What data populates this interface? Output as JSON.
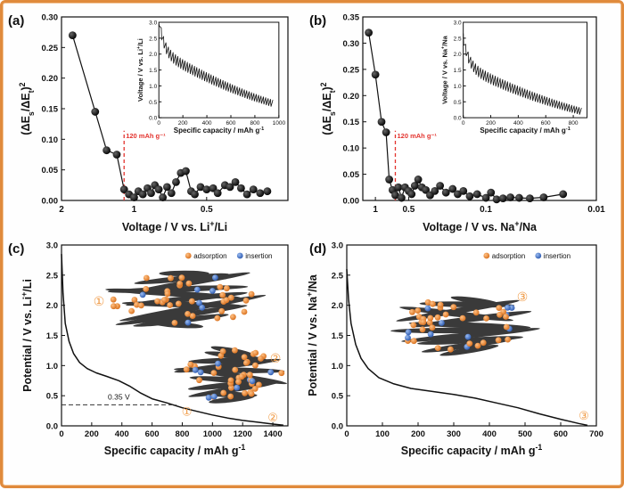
{
  "panel_labels": [
    "(a)",
    "(b)",
    "(c)",
    "(d)"
  ],
  "colors": {
    "frame": "#e08a3c",
    "adsorption": "#e8852e",
    "insertion": "#3b6fc6",
    "sheet": "#3a3a3a",
    "annotation_red": "#e3342f",
    "circled": "#f09a45"
  },
  "chart_data": [
    {
      "id": "a",
      "type": "scatter",
      "ylabel": "(ΔE_s/ΔE_t)^2",
      "xlabel": "Voltage / V vs. Li+/Li",
      "x_scale": "log-reversed",
      "xlim": [
        2,
        0.23
      ],
      "ylim": [
        0,
        0.3
      ],
      "xticks": [
        "2",
        "1",
        "0.5"
      ],
      "yticks": [
        "0.00",
        "0.05",
        "0.10",
        "0.15",
        "0.20",
        "0.25",
        "0.30"
      ],
      "x": [
        1.8,
        1.45,
        1.3,
        1.18,
        1.1,
        1.05,
        1.0,
        0.96,
        0.92,
        0.88,
        0.85,
        0.82,
        0.79,
        0.76,
        0.73,
        0.7,
        0.67,
        0.64,
        0.61,
        0.58,
        0.56,
        0.53,
        0.5,
        0.47,
        0.45,
        0.42,
        0.4,
        0.38,
        0.36,
        0.34,
        0.32,
        0.3,
        0.28
      ],
      "y": [
        0.27,
        0.145,
        0.082,
        0.075,
        0.018,
        0.01,
        0.005,
        0.015,
        0.01,
        0.02,
        0.012,
        0.025,
        0.018,
        0.005,
        0.022,
        0.012,
        0.03,
        0.045,
        0.048,
        0.015,
        0.01,
        0.022,
        0.018,
        0.02,
        0.012,
        0.025,
        0.022,
        0.03,
        0.02,
        0.01,
        0.018,
        0.012,
        0.015
      ],
      "annotation": "120 mAh g⁻¹",
      "annotation_x": 1.1,
      "inset": {
        "type": "line",
        "xlabel": "Specific capacity / mAh g⁻¹",
        "ylabel": "Voltage / V vs. Li+/Li",
        "xlim": [
          0,
          1000
        ],
        "ylim": [
          0,
          3
        ],
        "xticks": [
          "0",
          "200",
          "400",
          "600",
          "800",
          "1000"
        ],
        "yticks": [
          "0.0",
          "0.5",
          "1.0",
          "1.5",
          "2.0",
          "2.5",
          "3.0"
        ],
        "start_voltage": 2.9,
        "end_capacity": 950,
        "end_voltage": 0.35
      }
    },
    {
      "id": "b",
      "type": "scatter",
      "ylabel": "(ΔE_s/ΔE_t)^2",
      "xlabel": "Voltage / V vs. Na+/Na",
      "x_scale": "log-reversed",
      "xlim": [
        1.3,
        0.01
      ],
      "ylim": [
        0,
        0.35
      ],
      "xticks": [
        "1",
        "0.5",
        "0.1",
        "0.01"
      ],
      "yticks": [
        "0.00",
        "0.05",
        "0.10",
        "0.15",
        "0.20",
        "0.25",
        "0.30",
        "0.35"
      ],
      "x": [
        1.15,
        1.0,
        0.88,
        0.8,
        0.75,
        0.7,
        0.66,
        0.62,
        0.58,
        0.54,
        0.5,
        0.47,
        0.44,
        0.41,
        0.38,
        0.35,
        0.32,
        0.29,
        0.26,
        0.23,
        0.2,
        0.18,
        0.16,
        0.14,
        0.12,
        0.1,
        0.09,
        0.08,
        0.07,
        0.06,
        0.05,
        0.04,
        0.03,
        0.02
      ],
      "y": [
        0.32,
        0.24,
        0.15,
        0.13,
        0.04,
        0.02,
        0.01,
        0.025,
        0.005,
        0.025,
        0.018,
        0.012,
        0.028,
        0.04,
        0.025,
        0.02,
        0.01,
        0.018,
        0.028,
        0.015,
        0.022,
        0.012,
        0.018,
        0.008,
        0.012,
        0.005,
        0.015,
        0.002,
        0.004,
        0.006,
        0.005,
        0.004,
        0.006,
        0.012
      ],
      "annotation": "120 mAh g⁻¹",
      "annotation_x": 0.66,
      "inset": {
        "type": "line",
        "xlabel": "Specific capacity / mAh g⁻¹",
        "ylabel": "Voltage / V vs. Na+/Na",
        "xlim": [
          0,
          900
        ],
        "ylim": [
          0,
          3
        ],
        "xticks": [
          "0",
          "200",
          "400",
          "600",
          "800"
        ],
        "yticks": [
          "0.0",
          "0.5",
          "1.0",
          "1.5",
          "2.0",
          "2.5",
          "3.0"
        ],
        "start_voltage": 2.3,
        "end_capacity": 860,
        "end_voltage": 0.1
      }
    },
    {
      "id": "c",
      "type": "line",
      "xlabel": "Specific capacity / mAh g⁻¹",
      "ylabel": "Potential / V vs. Li+/Li",
      "xlim": [
        0,
        1500
      ],
      "ylim": [
        0,
        3
      ],
      "xticks": [
        "0",
        "200",
        "400",
        "600",
        "800",
        "1000",
        "1200",
        "1400"
      ],
      "yticks": [
        "0.0",
        "0.5",
        "1.0",
        "1.5",
        "2.0",
        "2.5",
        "3.0"
      ],
      "x": [
        0,
        10,
        25,
        50,
        80,
        120,
        170,
        230,
        300,
        380,
        450,
        520,
        600,
        700,
        800,
        900,
        1000,
        1100,
        1200,
        1300,
        1400,
        1470
      ],
      "y": [
        2.85,
        2.2,
        1.7,
        1.4,
        1.2,
        1.05,
        0.95,
        0.88,
        0.82,
        0.75,
        0.66,
        0.55,
        0.45,
        0.38,
        0.3,
        0.24,
        0.18,
        0.13,
        0.09,
        0.06,
        0.03,
        0.01
      ],
      "dashed_line_y": 0.35,
      "annotation": "0.35 V",
      "legend": [
        "adsorption",
        "insertion"
      ],
      "circled_marks": [
        "①",
        "②"
      ]
    },
    {
      "id": "d",
      "type": "line",
      "xlabel": "Specific capacity / mAh g⁻¹",
      "ylabel": "Potential / V vs. Na+/Na",
      "xlim": [
        0,
        700
      ],
      "ylim": [
        0,
        3
      ],
      "xticks": [
        "0",
        "100",
        "200",
        "300",
        "400",
        "500",
        "600",
        "700"
      ],
      "yticks": [
        "0.0",
        "0.5",
        "1.0",
        "1.5",
        "2.0",
        "2.5",
        "3.0"
      ],
      "x": [
        0,
        5,
        12,
        25,
        40,
        60,
        90,
        130,
        180,
        240,
        300,
        360,
        420,
        480,
        540,
        600,
        650,
        675
      ],
      "y": [
        2.6,
        2.1,
        1.7,
        1.35,
        1.12,
        0.95,
        0.8,
        0.7,
        0.62,
        0.57,
        0.52,
        0.46,
        0.38,
        0.3,
        0.2,
        0.11,
        0.04,
        0.01
      ],
      "legend": [
        "adsorption",
        "insertion"
      ],
      "circled_marks": [
        "③"
      ]
    }
  ]
}
